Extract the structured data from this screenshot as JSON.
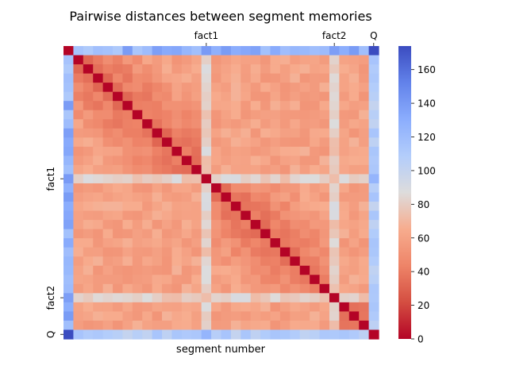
{
  "chart_data": {
    "type": "heatmap",
    "title": "Pairwise distances between segment memories",
    "xlabel": "segment number",
    "ylabel": "",
    "n": 30,
    "fact_indices": [
      14,
      27
    ],
    "question_index": 31,
    "tick_labels": {
      "x": [
        {
          "index": 14,
          "label": "fact1"
        },
        {
          "index": 27,
          "label": "fact2"
        },
        {
          "index": 31,
          "label": "Q"
        }
      ],
      "y": [
        {
          "index": 14,
          "label": "fact1"
        },
        {
          "index": 27,
          "label": "fact2"
        },
        {
          "index": 31,
          "label": "Q"
        }
      ]
    },
    "colorbar": {
      "min": 0,
      "max": 174,
      "ticks": [
        0,
        20,
        40,
        60,
        80,
        100,
        120,
        140,
        160
      ],
      "colormap": "coolwarm_r"
    },
    "value_bands": {
      "diagonal": 0,
      "within_first_block": [
        30,
        60
      ],
      "within_second_block": [
        30,
        60
      ],
      "within_last_block": [
        25,
        55
      ],
      "between_blocks": [
        50,
        70
      ],
      "fact_row": [
        70,
        95
      ],
      "first_row": [
        105,
        150
      ],
      "question_row": [
        120,
        174
      ]
    }
  }
}
